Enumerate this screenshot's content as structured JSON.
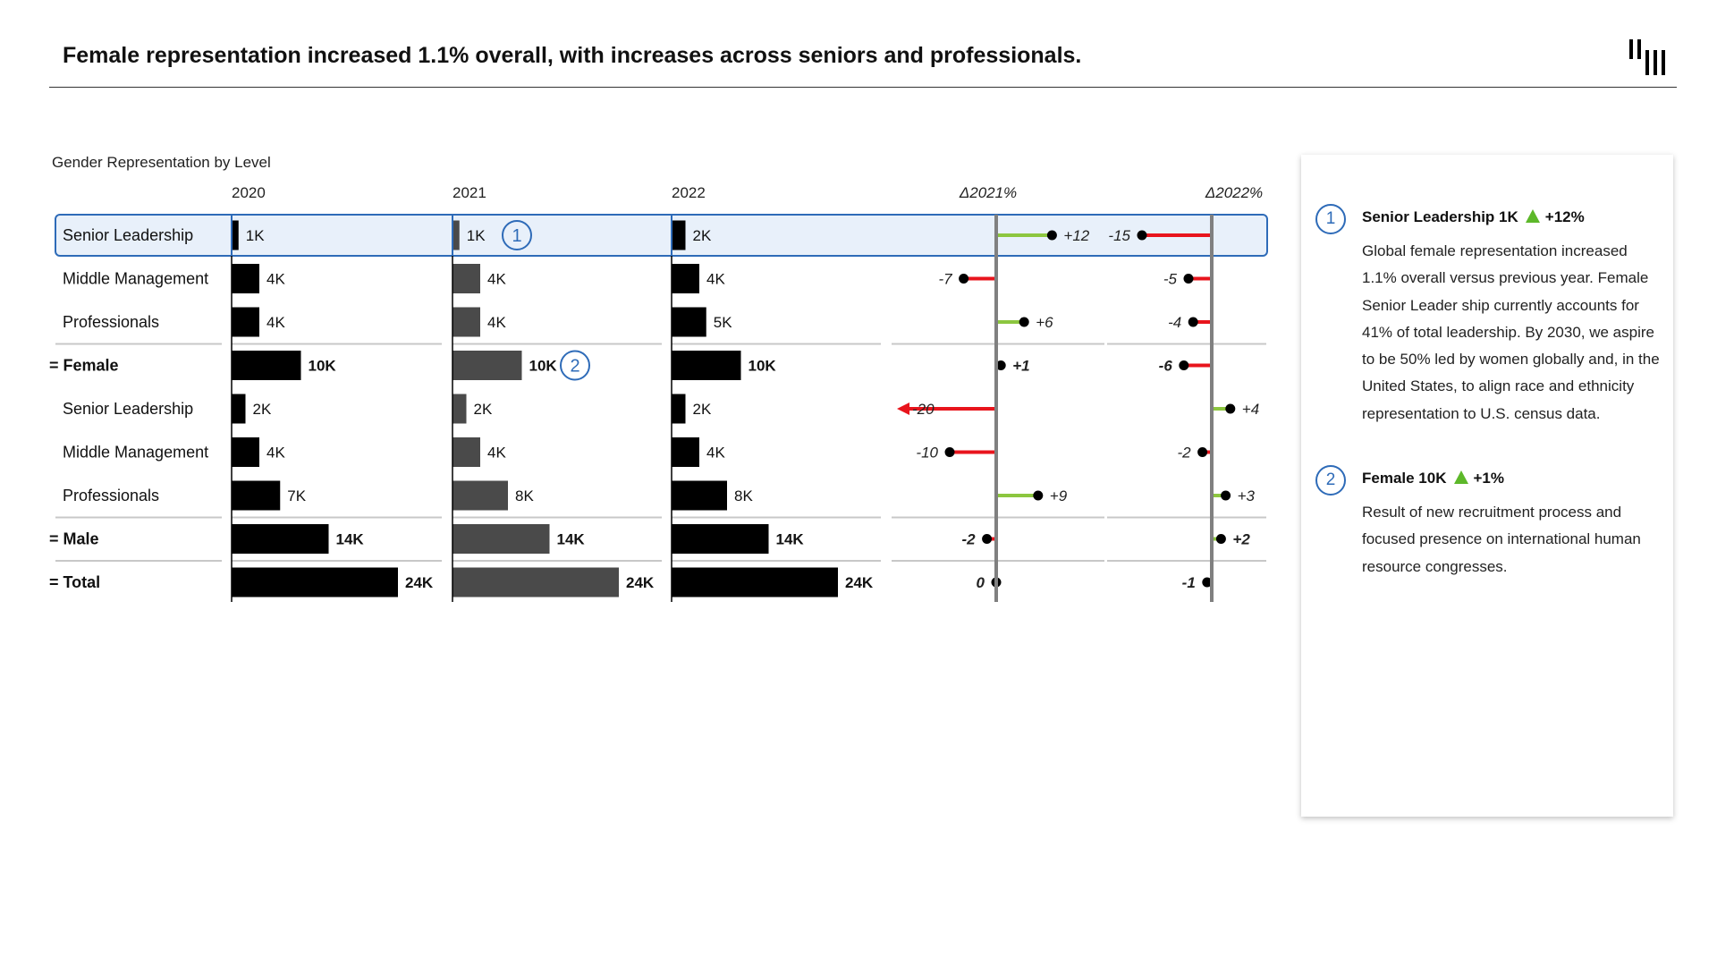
{
  "header": {
    "title": "Female representation increased 1.1% overall, with increases across seniors and professionals."
  },
  "chart_data": {
    "type": "bar",
    "title": "Gender Representation by Level",
    "periods": [
      "2020",
      "2021",
      "2022"
    ],
    "delta_headers": [
      "Δ2021%",
      "Δ2022%"
    ],
    "rows": [
      {
        "label": "Senior Leadership",
        "total": false,
        "values": [
          1,
          1,
          2
        ],
        "labels": [
          "1K",
          "1K",
          "2K"
        ],
        "d2021": 12,
        "d2021_label": "+12",
        "d2022": -15,
        "d2022_label": "-15",
        "highlight": true,
        "marker": "1"
      },
      {
        "label": "Middle Management",
        "total": false,
        "values": [
          4,
          4,
          4
        ],
        "labels": [
          "4K",
          "4K",
          "4K"
        ],
        "d2021": -7,
        "d2021_label": "-7",
        "d2022": -5,
        "d2022_label": "-5"
      },
      {
        "label": "Professionals",
        "total": false,
        "values": [
          4,
          4,
          5
        ],
        "labels": [
          "4K",
          "4K",
          "5K"
        ],
        "d2021": 6,
        "d2021_label": "+6",
        "d2022": -4,
        "d2022_label": "-4"
      },
      {
        "label": "= Female",
        "total": true,
        "values": [
          10,
          10,
          10
        ],
        "labels": [
          "10K",
          "10K",
          "10K"
        ],
        "d2021": 1,
        "d2021_label": "+1",
        "d2022": -6,
        "d2022_label": "-6",
        "marker": "2"
      },
      {
        "label": "Senior Leadership",
        "total": false,
        "values": [
          2,
          2,
          2
        ],
        "labels": [
          "2K",
          "2K",
          "2K"
        ],
        "d2021": -20,
        "d2021_label": "-20",
        "d2021_truncated": true,
        "d2022": 4,
        "d2022_label": "+4"
      },
      {
        "label": "Middle Management",
        "total": false,
        "values": [
          4,
          4,
          4
        ],
        "labels": [
          "4K",
          "4K",
          "4K"
        ],
        "d2021": -10,
        "d2021_label": "-10",
        "d2022": -2,
        "d2022_label": "-2"
      },
      {
        "label": "Professionals",
        "total": false,
        "values": [
          7,
          8,
          8
        ],
        "labels": [
          "7K",
          "8K",
          "8K"
        ],
        "d2021": 9,
        "d2021_label": "+9",
        "d2022": 3,
        "d2022_label": "+3"
      },
      {
        "label": "= Male",
        "total": true,
        "values": [
          14,
          14,
          14
        ],
        "labels": [
          "14K",
          "14K",
          "14K"
        ],
        "d2021": -2,
        "d2021_label": "-2",
        "d2022": 2,
        "d2022_label": "+2"
      },
      {
        "label": "= Total",
        "total": true,
        "values": [
          24,
          24,
          24
        ],
        "labels": [
          "24K",
          "24K",
          "24K"
        ],
        "d2021": 0,
        "d2021_label": "0",
        "d2022": -1,
        "d2022_label": "-1"
      }
    ],
    "unit": "K",
    "colors": {
      "actual": "#000000",
      "previous": "#4a4a4a",
      "positive": "#8cc63f",
      "negative": "#e8141c",
      "highlight_fill": "#e8f0fa",
      "highlight_border": "#2e6bb8",
      "axis": "#808080",
      "separator": "#c8c8c8"
    }
  },
  "notes": [
    {
      "number": "1",
      "heading": "Senior Leadership 1K",
      "change": "+12%",
      "body": "Global female representation increased 1.1% overall versus previous year. Female Senior Leader ship currently accounts for 41% of total leadership. By 2030, we aspire to be 50% led by women globally and, in the United States, to align race and ethnicity representation to U.S. census data."
    },
    {
      "number": "2",
      "heading": "Female 10K",
      "change": "+1%",
      "body": "Result of new recruitment process and focused presence on international human resource congresses."
    }
  ]
}
